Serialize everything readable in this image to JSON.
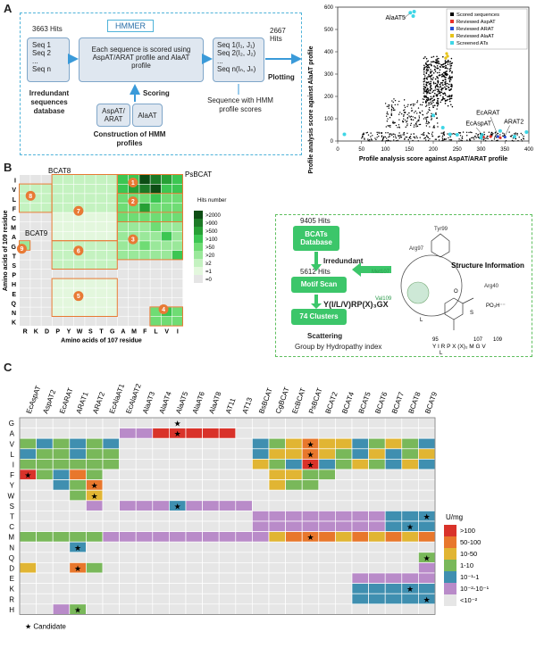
{
  "panel_a": {
    "label": "A",
    "hits1": "3663 Hits",
    "seq_list": [
      "Seq 1",
      "Seq 2",
      "...",
      "Seq n"
    ],
    "db_label": "Irredundant sequences database",
    "hmmer": "HMMER",
    "process_text": "Each sequence is scored using AspAT/ARAT profile and AlaAT profile",
    "scored_list": [
      "Seq 1(I₁, J₁)",
      "Seq 2(I₂, J₂)",
      "...",
      "Seq n(Iₙ, Jₙ)"
    ],
    "hits2": "2667 Hits",
    "plotting": "Plotting",
    "scoring": "Scoring",
    "profile1": "AspAT/ ARAT",
    "profile2": "AlaAT",
    "construction": "Construction of HMM profiles",
    "seq_hmm": "Sequence with HMM profile scores",
    "scatter": {
      "xlabel": "Profile analysis score against AspAT/ARAT profile",
      "ylabel": "Profile analysis score against AlaAT profile",
      "xticks": [
        "0",
        "50",
        "100",
        "150",
        "200",
        "250",
        "300",
        "350",
        "400"
      ],
      "yticks": [
        "0",
        "100",
        "200",
        "300",
        "400",
        "500",
        "600"
      ],
      "xlim": [
        0,
        400
      ],
      "ylim": [
        0,
        600
      ],
      "legend": [
        "Scored sequences",
        "Reviewed AspAT",
        "Reviewed ARAT",
        "Reviewed AlaAT",
        "Screened ATs"
      ],
      "legend_colors": [
        "#000000",
        "#e8302a",
        "#2a4fd8",
        "#e6c319",
        "#3fd6e6"
      ],
      "annotations": [
        "AlaAT5",
        "EcARAT",
        "EcAspAT",
        "ARAT2"
      ]
    }
  },
  "panel_b": {
    "label": "B",
    "x_res": [
      "R",
      "K",
      "D",
      "P",
      "Y",
      "W",
      "S",
      "T",
      "G",
      "A",
      "M",
      "F",
      "L",
      "V",
      "I"
    ],
    "y_res": [
      "I",
      "V",
      "L",
      "F",
      "C",
      "M",
      "A",
      "G",
      "T",
      "S",
      "P",
      "H",
      "E",
      "Q",
      "N",
      "K"
    ],
    "xlabel": "Amino acids of 107 residue",
    "ylabel": "Amino acids of 109 residue",
    "ann_bcat8": "BCAT8",
    "ann_bcat9": "BCAT9",
    "ann_psbcat": "PsBCAT",
    "cluster_nums": [
      "1",
      "2",
      "3",
      "4",
      "5",
      "6",
      "7",
      "8",
      "9"
    ],
    "legend_title": "Hits number",
    "legend_items": [
      ">2000",
      ">900",
      ">500",
      ">100",
      ">50",
      ">20",
      "≥2",
      "=1",
      "=0"
    ],
    "legend_colors": [
      "#0d4d14",
      "#1c7a26",
      "#27a035",
      "#3cc652",
      "#6fdc74",
      "#9ae89a",
      "#c4f2c0",
      "#e3f7dd",
      "#e5e5e5"
    ],
    "flow_hits1": "9405 Hits",
    "flow_db": "BCATs Database",
    "flow_irr": "Irredundant",
    "flow_hits2": "5612 Hits",
    "flow_motif": "Motif Scan",
    "flow_motif_out": "Y(I/L/V)RP(X)₃GX",
    "flow_clusters": "74 Clusters",
    "flow_scatter": "Scattering",
    "flow_group": "Group by Hydropathy index",
    "struct_title": "Structure Information",
    "struct_labels": [
      "Tyr99",
      "Arg97",
      "Met107",
      "Val109",
      "Arg40",
      "L",
      "S",
      "O",
      "PO₃H⁻⁻"
    ],
    "motif_nums": [
      "95",
      "107",
      "109"
    ],
    "motif_seq": "Y I R P X (X)₂ M G V",
    "motif_sub": [
      "L",
      "V"
    ]
  },
  "panel_c": {
    "label": "C",
    "columns": [
      "EcAspAT",
      "AspAT2",
      "EcARAT",
      "ARAT1",
      "ARAT2",
      "EcAlaAT1",
      "EcAlaAT2",
      "AlaAT3",
      "AlaAT4",
      "AlaAT5",
      "AlaAT6",
      "AlaAT8",
      "AT11",
      "AT13",
      "BsBCAT",
      "CgBCAT",
      "EcBCAT",
      "PsBCAT",
      "BCAT2",
      "BCAT4",
      "BCAT5",
      "BCAT6",
      "BCAT7",
      "BCAT8",
      "BCAT9"
    ],
    "rows": [
      "G",
      "A",
      "V",
      "L",
      "I",
      "F",
      "Y",
      "W",
      "S",
      "T",
      "C",
      "M",
      "N",
      "Q",
      "D",
      "E",
      "K",
      "R",
      "H"
    ],
    "legend_title": "U/mg",
    "legend_items": [
      ">100",
      "50-100",
      "10-50",
      "1-10",
      "10⁻¹-1",
      "10⁻²-10⁻¹",
      "<10⁻²"
    ],
    "legend_colors": [
      "#d9322a",
      "#e8772c",
      "#e1b533",
      "#79b85a",
      "#3f8fb0",
      "#b98bc9",
      "#e6e6e6"
    ],
    "candidate_label": "★ Candidate",
    "star_glyph": "★"
  }
}
